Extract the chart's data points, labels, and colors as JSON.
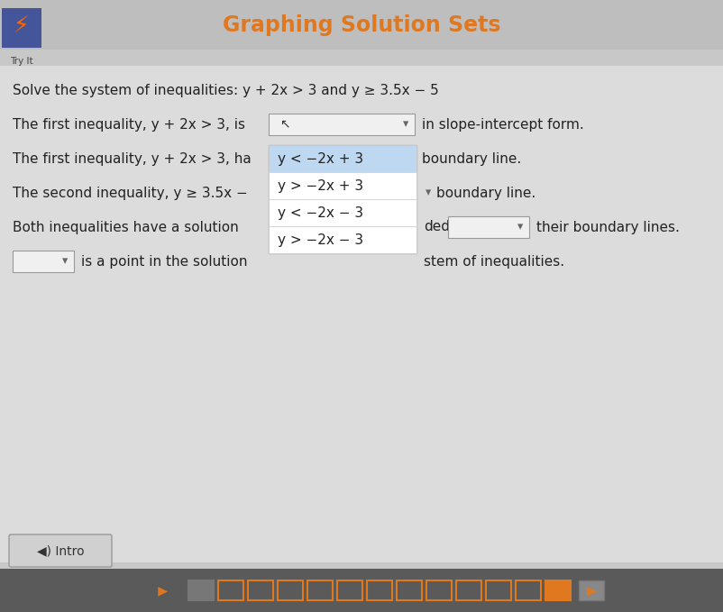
{
  "title": "Graphing Solution Sets",
  "title_color": "#E07820",
  "bg_color": "#C8C8C8",
  "content_bg": "#DCDCDC",
  "header_bg": "#BEBEBE",
  "main_text_color": "#222222",
  "line0": "Solve the system of inequalities: y + 2x > 3 and y ≥ 3.5x − 5",
  "line1_pre": "The first inequality, y + 2x > 3, is",
  "line1_post": "in slope-intercept form.",
  "line2_pre": "The first inequality, y + 2x > 3, ha",
  "line2_post": "boundary line.",
  "line3_pre": "The second inequality, y ≥ 3.5x −",
  "line3_post": "boundary line.",
  "line4_pre": "Both inequalities have a solution",
  "line4_mid": "ded",
  "line4_post": "their boundary lines.",
  "line5_mid": "is a point in the solution",
  "line5_post": "stem of inequalities.",
  "dropdown_items": [
    "y < −2x + 3",
    "y > −2x + 3",
    "y < −2x − 3",
    "y > −2x − 3"
  ],
  "dropdown_highlight_idx": 0,
  "dropdown_highlight_color": "#BDD8F0",
  "dropdown_bg": "#FFFFFF",
  "font_size": 11.0,
  "figsize": [
    8.02,
    6.79
  ],
  "dpi": 100,
  "nav_color": "#5A5A5A",
  "progress_bar_filled": "#E07820",
  "progress_bar_empty_border": "#888888",
  "progress_total": 13,
  "progress_last_filled": 12,
  "icon_orange": "#E07820"
}
